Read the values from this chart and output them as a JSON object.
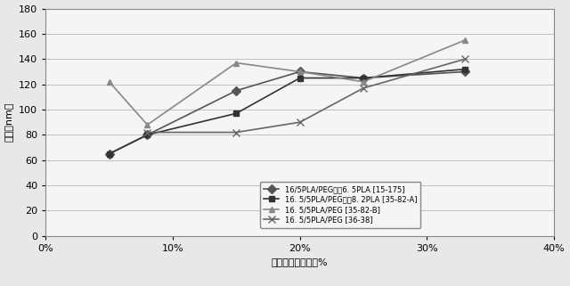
{
  "series": [
    {
      "label": "16/5PLA/PEG及て6.5PLA [15-175]",
      "x": [
        5,
        8,
        15,
        20,
        25,
        33
      ],
      "y": [
        65,
        80,
        115,
        130,
        125,
        130
      ],
      "marker": "D",
      "color": "#555555",
      "linestyle": "-",
      "markersize": 5
    },
    {
      "label": "16.5/5PLA/PEG及て8.2PLA [35-82-A]",
      "x": [
        5,
        8,
        15,
        20,
        25,
        33
      ],
      "y": [
        65,
        80,
        97,
        125,
        125,
        132
      ],
      "marker": "s",
      "color": "#333333",
      "linestyle": "-",
      "markersize": 5
    },
    {
      "label": "16.5/5PLA/PEG [35-82-B]",
      "x": [
        5,
        8,
        15,
        20,
        25,
        33
      ],
      "y": [
        122,
        88,
        137,
        130,
        122,
        155
      ],
      "marker": "^",
      "color": "#888888",
      "linestyle": "-",
      "markersize": 5
    },
    {
      "label": "16.5/5PLA/PEG [36-38]",
      "x": [
        8,
        15,
        20,
        25,
        33
      ],
      "y": [
        82,
        82,
        90,
        117,
        140
      ],
      "marker": "x",
      "color": "#666666",
      "linestyle": "-",
      "markersize": 6
    }
  ],
  "xlabel": "有機相中の固形分%",
  "ylabel": "直径（nm）",
  "xlim": [
    0,
    40
  ],
  "ylim": [
    0,
    180
  ],
  "xticks": [
    0,
    10,
    20,
    30,
    40
  ],
  "yticks": [
    0,
    20,
    40,
    60,
    80,
    100,
    120,
    140,
    160,
    180
  ],
  "background_color": "#e8e8e8",
  "plot_background": "#f5f5f5",
  "legend_labels_ascii": [
    "16/5PLA/PEG及て6. 5PLA [15-175]",
    "16. 5/5PLA/PEG及て8. 2PLA [35-82-A]",
    "16. 5/5PLA/PEG [35-82-B]",
    "16. 5/5PLA/PEG [36-38]"
  ],
  "figsize": [
    6.4,
    3.21
  ],
  "dpi": 100
}
